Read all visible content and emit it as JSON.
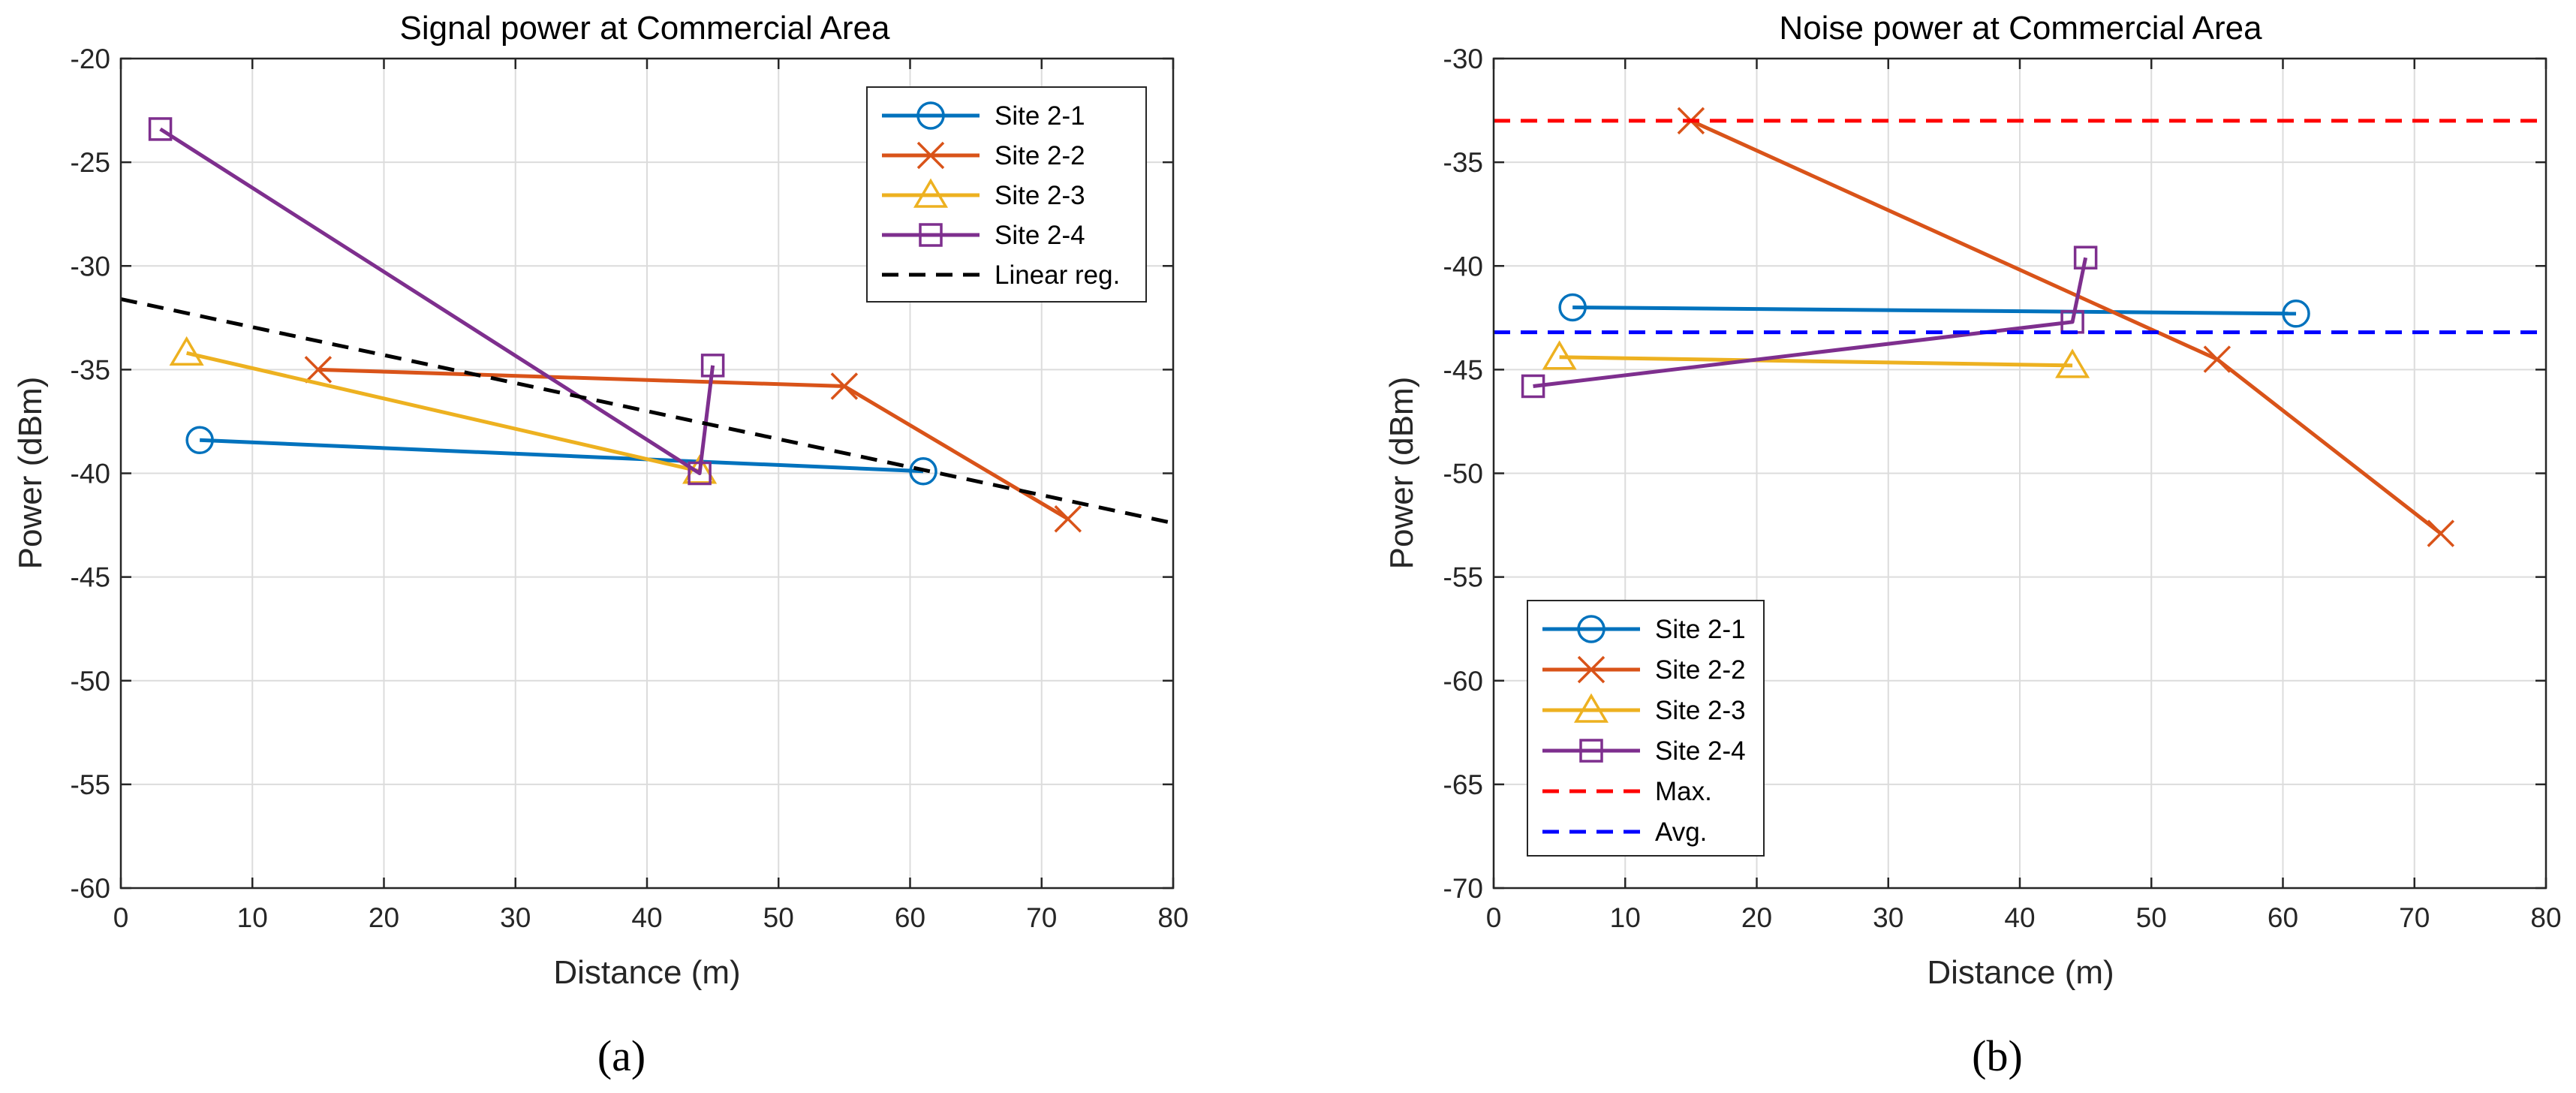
{
  "chart_data": [
    {
      "type": "line",
      "title": "Signal power at Commercial Area",
      "xlabel": "Distance (m)",
      "ylabel": "Power (dBm)",
      "xlim": [
        0,
        80
      ],
      "ylim": [
        -60,
        -20
      ],
      "xticks": [
        "0",
        "10",
        "20",
        "30",
        "40",
        "50",
        "60",
        "70",
        "80"
      ],
      "yticks": [
        "-60",
        "-55",
        "-50",
        "-45",
        "-40",
        "-35",
        "-30",
        "-25",
        "-20"
      ],
      "grid": true,
      "legend_position": "top-right",
      "panel_label": "(a)",
      "series": [
        {
          "name": "Site 2-1",
          "marker": "circle",
          "color": "#0072BD",
          "x": [
            6,
            61
          ],
          "y": [
            -38.4,
            -39.9
          ]
        },
        {
          "name": "Site 2-2",
          "marker": "x",
          "color": "#D95319",
          "x": [
            15,
            55,
            72
          ],
          "y": [
            -35.0,
            -35.8,
            -42.2
          ]
        },
        {
          "name": "Site 2-3",
          "marker": "triangle",
          "color": "#EDB120",
          "x": [
            5,
            44
          ],
          "y": [
            -34.2,
            -39.9
          ]
        },
        {
          "name": "Site 2-4",
          "marker": "square",
          "color": "#7E2F8E",
          "x": [
            3,
            44,
            45
          ],
          "y": [
            -23.4,
            -40.0,
            -34.8
          ]
        },
        {
          "name": "Linear reg.",
          "style": "dashed",
          "color": "#000000",
          "x": [
            0,
            80
          ],
          "y": [
            -31.6,
            -42.4
          ]
        }
      ]
    },
    {
      "type": "line",
      "title": "Noise power at Commercial Area",
      "xlabel": "Distance (m)",
      "ylabel": "Power (dBm)",
      "xlim": [
        0,
        80
      ],
      "ylim": [
        -70,
        -30
      ],
      "xticks": [
        "0",
        "10",
        "20",
        "30",
        "40",
        "50",
        "60",
        "70",
        "80"
      ],
      "yticks": [
        "-70",
        "-65",
        "-60",
        "-55",
        "-50",
        "-45",
        "-40",
        "-35",
        "-30"
      ],
      "grid": true,
      "legend_position": "bottom-left",
      "panel_label": "(b)",
      "series": [
        {
          "name": "Site 2-1",
          "marker": "circle",
          "color": "#0072BD",
          "x": [
            6,
            61
          ],
          "y": [
            -42.0,
            -42.3
          ]
        },
        {
          "name": "Site 2-2",
          "marker": "x",
          "color": "#D95319",
          "x": [
            15,
            55,
            72
          ],
          "y": [
            -33.0,
            -44.5,
            -52.9
          ]
        },
        {
          "name": "Site 2-3",
          "marker": "triangle",
          "color": "#EDB120",
          "x": [
            5,
            44
          ],
          "y": [
            -44.4,
            -44.8
          ]
        },
        {
          "name": "Site 2-4",
          "marker": "square",
          "color": "#7E2F8E",
          "x": [
            3,
            44,
            45
          ],
          "y": [
            -45.8,
            -42.7,
            -39.6
          ]
        },
        {
          "name": "Max.",
          "style": "dashed",
          "color": "#FF0000",
          "x": [
            0,
            80
          ],
          "y": [
            -33.0,
            -33.0
          ]
        },
        {
          "name": "Avg.",
          "style": "dashed",
          "color": "#0000FF",
          "x": [
            0,
            80
          ],
          "y": [
            -43.2,
            -43.2
          ]
        }
      ]
    }
  ]
}
